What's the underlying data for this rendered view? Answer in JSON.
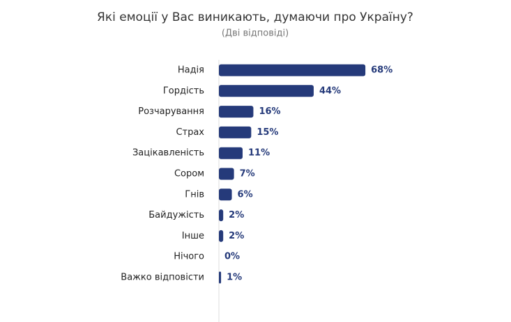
{
  "chart_data": {
    "type": "bar",
    "orientation": "horizontal",
    "title": "Які емоції у Вас виникають, думаючи про Україну?",
    "subtitle": "(Дві відповіді)",
    "categories": [
      "Надія",
      "Гордість",
      "Розчарування",
      "Страх",
      "Зацікавленість",
      "Сором",
      "Гнів",
      "Байдужість",
      "Інше",
      "Нічого",
      "Важко відповісти"
    ],
    "values": [
      68,
      44,
      16,
      15,
      11,
      7,
      6,
      2,
      2,
      0,
      1
    ],
    "value_labels": [
      "68%",
      "44%",
      "16%",
      "15%",
      "11%",
      "7%",
      "6%",
      "2%",
      "2%",
      "0%",
      "1%"
    ],
    "color": "#253a7a",
    "xlim": [
      0,
      100
    ]
  }
}
